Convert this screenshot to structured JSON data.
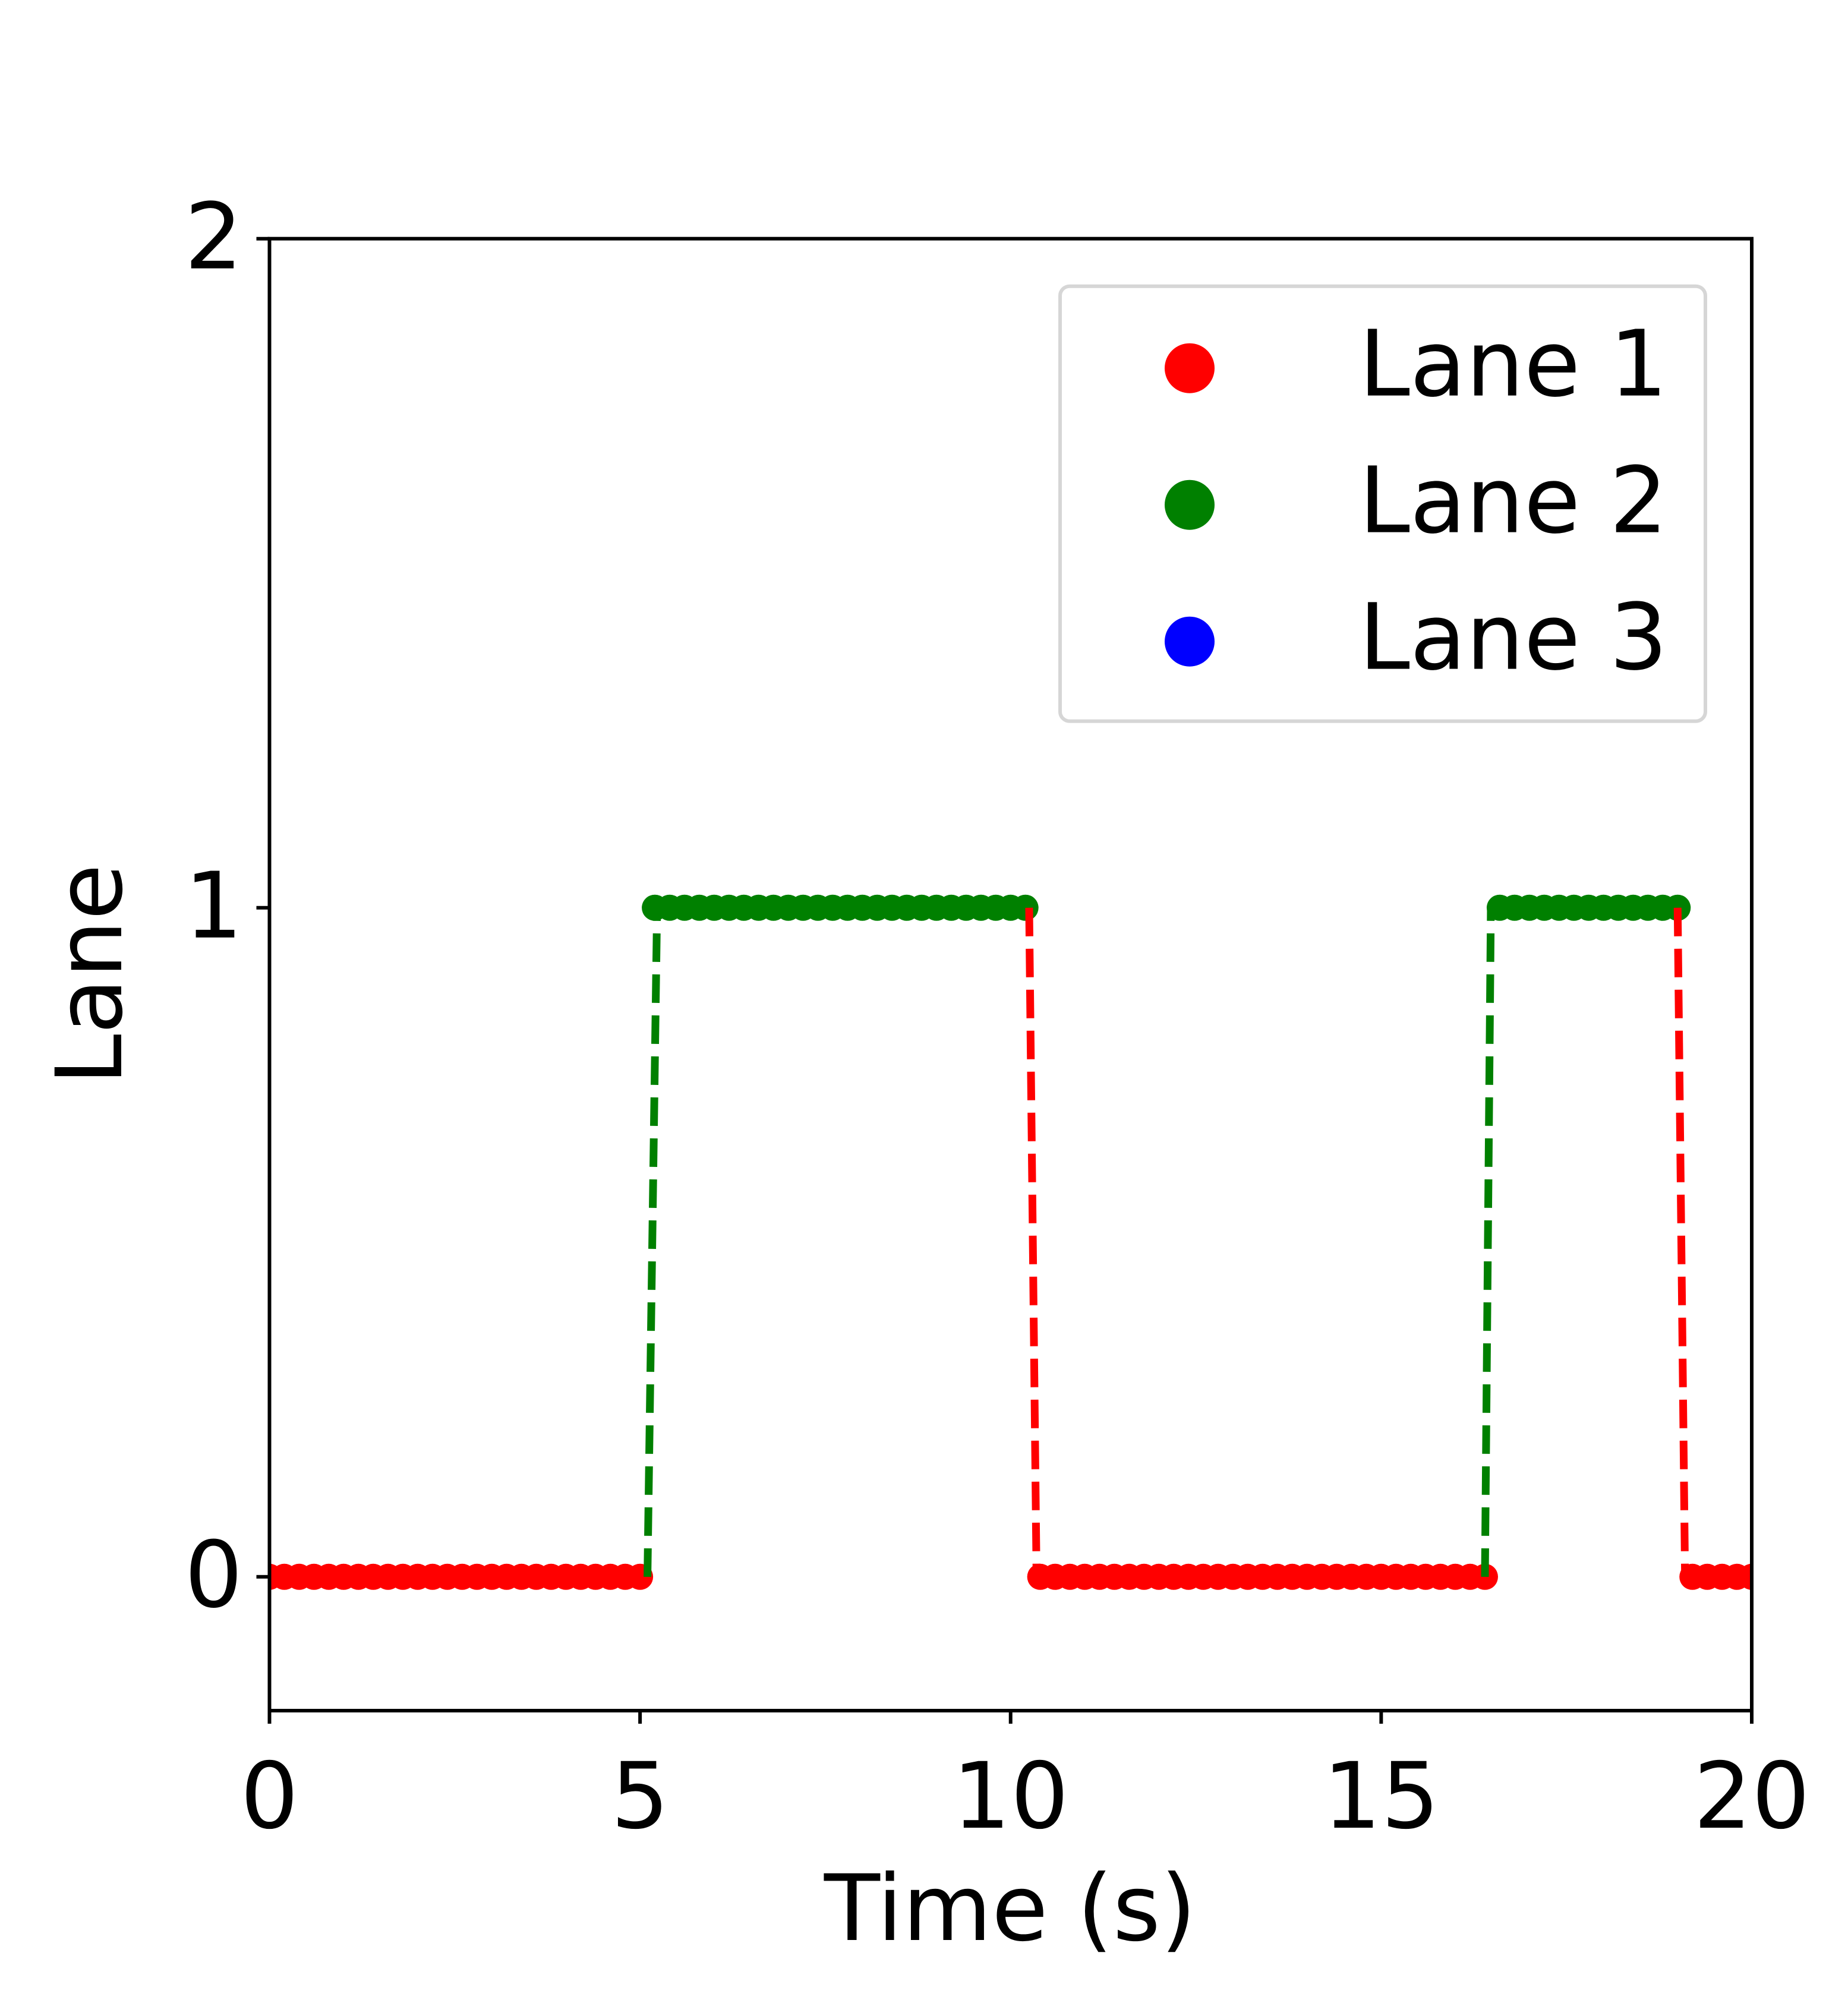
{
  "chart_data": {
    "type": "scatter",
    "xlabel": "Time (s)",
    "ylabel": "Lane",
    "xlim": [
      0,
      20
    ],
    "xticks": [
      0,
      5,
      10,
      15,
      20
    ],
    "ylim": [
      -0.2,
      2
    ],
    "yticks": [
      0,
      1,
      2
    ],
    "legend": "upper right",
    "series": [
      {
        "name": "Lane 1",
        "color": "#ff0000",
        "x": [
          0,
          0.2,
          0.4,
          0.6,
          0.8,
          1,
          1.2,
          1.4,
          1.6,
          1.8,
          2,
          2.2,
          2.4,
          2.6,
          2.8,
          3,
          3.2,
          3.4,
          3.6,
          3.8,
          4,
          4.2,
          4.4,
          4.6,
          4.8,
          5,
          10.4,
          10.6,
          10.8,
          11,
          11.2,
          11.4,
          11.6,
          11.8,
          12,
          12.2,
          12.4,
          12.6,
          12.8,
          13,
          13.2,
          13.4,
          13.6,
          13.8,
          14,
          14.2,
          14.4,
          14.6,
          14.8,
          15,
          15.2,
          15.4,
          15.6,
          15.8,
          16,
          16.2,
          16.4,
          19.2,
          19.4,
          19.6,
          19.8,
          20
        ],
        "values": [
          0,
          0,
          0,
          0,
          0,
          0,
          0,
          0,
          0,
          0,
          0,
          0,
          0,
          0,
          0,
          0,
          0,
          0,
          0,
          0,
          0,
          0,
          0,
          0,
          0,
          0,
          0,
          0,
          0,
          0,
          0,
          0,
          0,
          0,
          0,
          0,
          0,
          0,
          0,
          0,
          0,
          0,
          0,
          0,
          0,
          0,
          0,
          0,
          0,
          0,
          0,
          0,
          0,
          0,
          0,
          0,
          0,
          0,
          0,
          0,
          0,
          0
        ]
      },
      {
        "name": "Lane 2",
        "color": "#008000",
        "x": [
          5.2,
          5.4,
          5.6,
          5.8,
          6,
          6.2,
          6.4,
          6.6,
          6.8,
          7,
          7.2,
          7.4,
          7.6,
          7.8,
          8,
          8.2,
          8.4,
          8.6,
          8.8,
          9,
          9.2,
          9.4,
          9.6,
          9.8,
          10,
          10.2,
          16.6,
          16.8,
          17,
          17.2,
          17.4,
          17.6,
          17.8,
          18,
          18.2,
          18.4,
          18.6,
          18.8,
          19
        ],
        "values": [
          1,
          1,
          1,
          1,
          1,
          1,
          1,
          1,
          1,
          1,
          1,
          1,
          1,
          1,
          1,
          1,
          1,
          1,
          1,
          1,
          1,
          1,
          1,
          1,
          1,
          1,
          1,
          1,
          1,
          1,
          1,
          1,
          1,
          1,
          1,
          1,
          1,
          1,
          1
        ]
      },
      {
        "name": "Lane 3",
        "color": "#0000ff",
        "x": [],
        "values": []
      }
    ],
    "lines": [
      {
        "color": "#008000",
        "x": [
          5.1,
          5.23
        ],
        "values": [
          0,
          1
        ]
      },
      {
        "color": "#ff0000",
        "x": [
          10.25,
          10.35
        ],
        "values": [
          1,
          0
        ]
      },
      {
        "color": "#008000",
        "x": [
          16.4,
          16.48
        ],
        "values": [
          0,
          1
        ]
      },
      {
        "color": "#ff0000",
        "x": [
          19.0,
          19.1
        ],
        "values": [
          1,
          0
        ]
      }
    ]
  }
}
